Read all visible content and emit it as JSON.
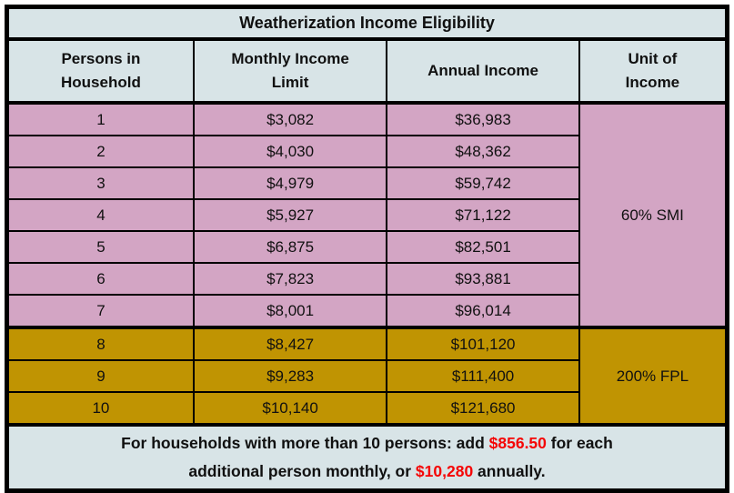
{
  "colors": {
    "panel_bg": "#d8e4e7",
    "smi_bg": "#d3a5c4",
    "fpl_bg": "#c09402",
    "red_text": "#f50505",
    "border": "#000000"
  },
  "chart_data": {
    "type": "table",
    "title": "Weatherization Income Eligibility",
    "columns": [
      "Persons in Household",
      "Monthly Income Limit",
      "Annual Income",
      "Unit of Income"
    ],
    "groups": [
      {
        "unit_of_income": "60% SMI",
        "rows": [
          [
            "1",
            "$3,082",
            "$36,983"
          ],
          [
            "2",
            "$4,030",
            "$48,362"
          ],
          [
            "3",
            "$4,979",
            "$59,742"
          ],
          [
            "4",
            "$5,927",
            "$71,122"
          ],
          [
            "5",
            "$6,875",
            "$82,501"
          ],
          [
            "6",
            "$7,823",
            "$93,881"
          ],
          [
            "7",
            "$8,001",
            "$96,014"
          ]
        ]
      },
      {
        "unit_of_income": "200% FPL",
        "rows": [
          [
            "8",
            "$8,427",
            "$101,120"
          ],
          [
            "9",
            "$9,283",
            "$111,400"
          ],
          [
            "10",
            "$10,140",
            "$121,680"
          ]
        ]
      }
    ],
    "footnote": {
      "text_before": "For households with more than 10 persons: add ",
      "monthly_addition": "$856.50",
      "text_middle": " for each additional person monthly, or ",
      "annual_addition": "$10,280",
      "text_after": " annually."
    }
  }
}
